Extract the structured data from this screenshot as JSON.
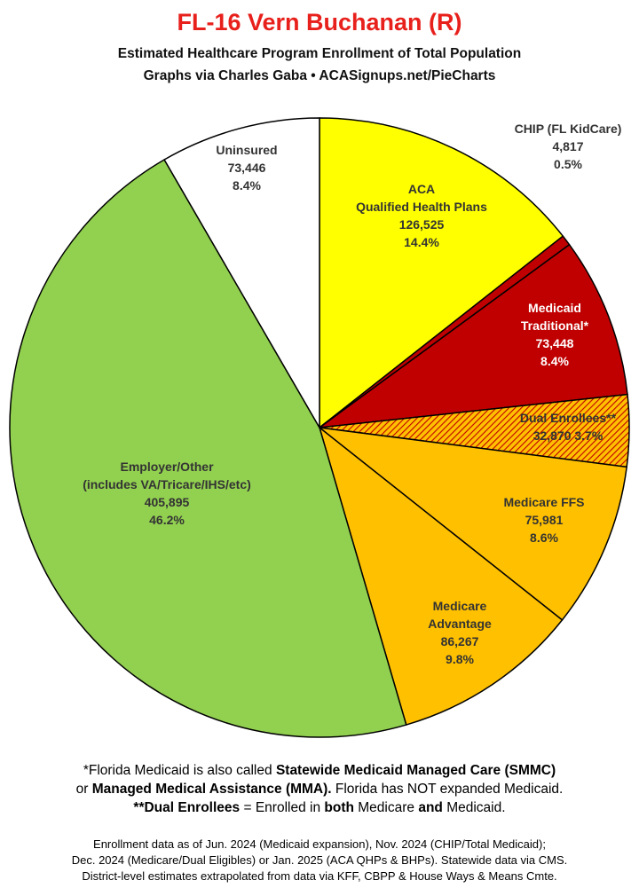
{
  "title": "FL-16 Vern Buchanan (R)",
  "subtitle": "Estimated Healthcare Program Enrollment of Total Population",
  "credit": "Graphs via Charles Gaba  •  ACASignups.net/PieCharts",
  "chart_data": {
    "type": "pie",
    "slices": [
      {
        "name": "ACA Qualified Health Plans",
        "label": [
          "ACA",
          "Qualified Health Plans"
        ],
        "value": 126525,
        "value_text": "126,525",
        "pct_text": "14.4%",
        "color": "#ffff00",
        "label_color": "#333333"
      },
      {
        "name": "CHIP (FL KidCare)",
        "label": [
          "CHIP (FL KidCare)"
        ],
        "value": 4817,
        "value_text": "4,817",
        "pct_text": "0.5%",
        "color": "#c00000",
        "label_color": "#333333"
      },
      {
        "name": "Medicaid Traditional*",
        "label": [
          "Medicaid",
          "Traditional*"
        ],
        "value": 73448,
        "value_text": "73,448",
        "pct_text": "8.4%",
        "color": "#c00000",
        "label_color": "#ffffff"
      },
      {
        "name": "Dual Enrollees**",
        "label": [
          "Dual Enrollees**"
        ],
        "value": 32870,
        "value_text": "32,870",
        "pct_text": "3.7%",
        "color": "#ffc000",
        "pattern": "hatch",
        "label_color": "#333333"
      },
      {
        "name": "Medicare FFS",
        "label": [
          "Medicare FFS"
        ],
        "value": 75981,
        "value_text": "75,981",
        "pct_text": "8.6%",
        "color": "#ffc000",
        "label_color": "#333333"
      },
      {
        "name": "Medicare Advantage",
        "label": [
          "Medicare",
          "Advantage"
        ],
        "value": 86267,
        "value_text": "86,267",
        "pct_text": "9.8%",
        "color": "#ffc000",
        "label_color": "#333333"
      },
      {
        "name": "Employer/Other (includes VA/Tricare/IHS/etc)",
        "label": [
          "Employer/Other",
          "(includes VA/Tricare/IHS/etc)"
        ],
        "value": 405895,
        "value_text": "405,895",
        "pct_text": "46.2%",
        "color": "#92d050",
        "label_color": "#333333"
      },
      {
        "name": "Uninsured",
        "label": [
          "Uninsured"
        ],
        "value": 73446,
        "value_text": "73,446",
        "pct_text": "8.4%",
        "color": "#ffffff",
        "label_color": "#333333"
      }
    ],
    "start_angle": "12 o'clock",
    "direction": "clockwise"
  },
  "notes": {
    "line1_a": "*Florida Medicaid is also called ",
    "line1_b": "Statewide Medicaid Managed Care (SMMC)",
    "line2_a": "or ",
    "line2_b": "Managed Medical Assistance (MMA).",
    "line2_c": " Florida has NOT expanded Medicaid.",
    "line3_a": "**Dual Enrollees",
    "line3_b": " = Enrolled in ",
    "line3_c": "both",
    "line3_d": " Medicare ",
    "line3_e": "and",
    "line3_f": " Medicaid."
  },
  "footer": [
    "Enrollment data as of Jun. 2024 (Medicaid expansion), Nov. 2024 (CHIP/Total Medicaid);",
    "Dec. 2024 (Medicare/Dual Eligibles) or Jan. 2025 (ACA QHPs & BHPs). Statewide data via CMS.",
    "District-level estimates extrapolated from data via KFF, CBPP & House Ways & Means Cmte."
  ]
}
